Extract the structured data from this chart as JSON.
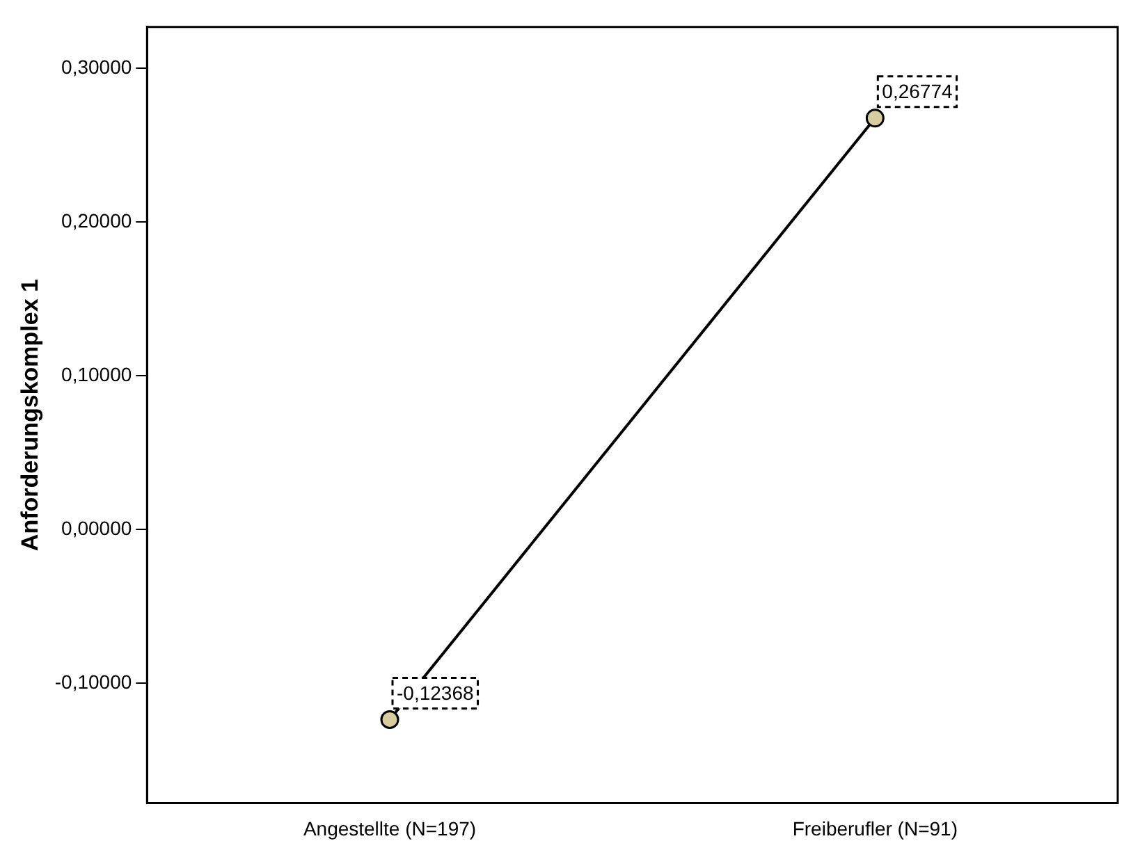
{
  "chart_data": {
    "type": "line",
    "ylabel": "Anforderungskomplex 1",
    "categories": [
      "Angestellte (N=197)",
      "Freiberufler (N=91)"
    ],
    "series": [
      {
        "color": "#000000",
        "colors": [
          "#d8cd9c",
          "#d8cd9c"
        ],
        "values": [
          -0.12368,
          0.26774
        ],
        "value_labels": [
          "-0,12368",
          "0,26774"
        ]
      }
    ],
    "ylim": [
      -0.178,
      0.327
    ],
    "yticks": [
      {
        "value": -0.1,
        "label": "-0,10000"
      },
      {
        "value": 0,
        "label": "0,00000"
      },
      {
        "value": 0.1,
        "label": "0,10000"
      },
      {
        "value": 0.2,
        "label": "0,20000"
      },
      {
        "value": 0.3,
        "label": "0,30000"
      }
    ],
    "grid": false,
    "legend": false,
    "marker": "circle",
    "line_style": "solid"
  }
}
